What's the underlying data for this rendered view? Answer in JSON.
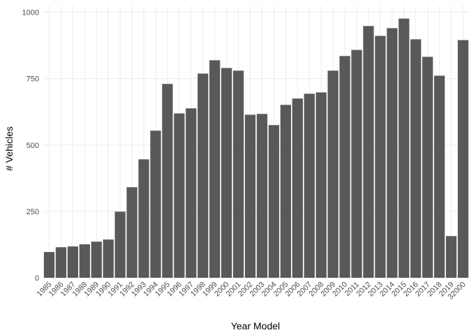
{
  "chart_data": {
    "type": "bar",
    "x_label": "Year Model",
    "y_label": "# Vehicles",
    "categories": [
      "1985",
      "1986",
      "1987",
      "1988",
      "1989",
      "1990",
      "1991",
      "1992",
      "1993",
      "1994",
      "1995",
      "1996",
      "1997",
      "1998",
      "1999",
      "2000",
      "2001",
      "2002",
      "2003",
      "2004",
      "2005",
      "2006",
      "2007",
      "2008",
      "2009",
      "2010",
      "2011",
      "2012",
      "2013",
      "2014",
      "2015",
      "2016",
      "2017",
      "2018",
      "2019",
      "32000"
    ],
    "values": [
      97,
      115,
      118,
      126,
      136,
      144,
      249,
      341,
      446,
      554,
      730,
      619,
      638,
      769,
      819,
      790,
      780,
      614,
      617,
      575,
      651,
      675,
      693,
      698,
      780,
      835,
      858,
      948,
      911,
      940,
      976,
      898,
      832,
      761,
      157,
      895
    ],
    "color": "#595959",
    "ylim": [
      0,
      1025
    ],
    "yticks": [
      0,
      250,
      500,
      750,
      1000
    ],
    "grid": true
  }
}
